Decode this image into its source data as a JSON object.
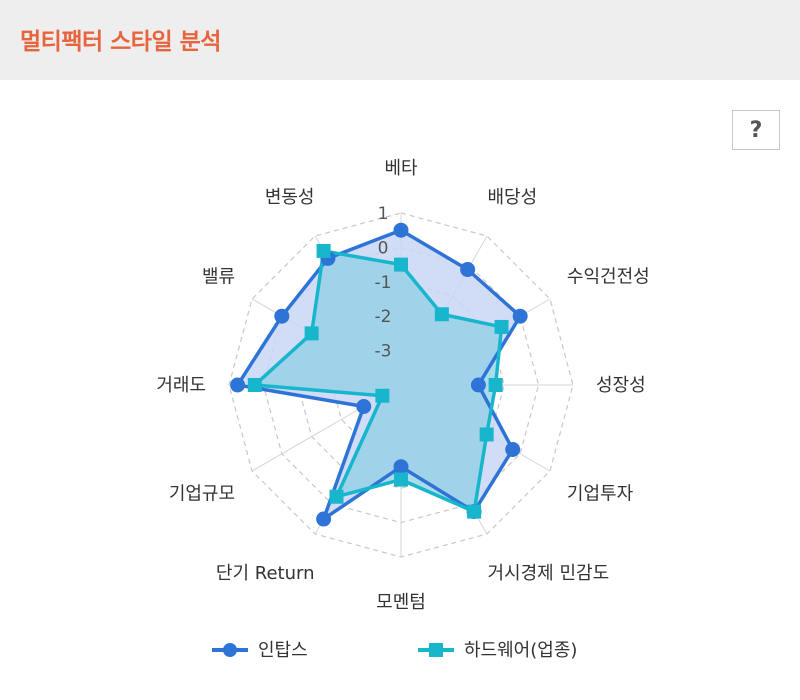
{
  "header": {
    "title": "멀티팩터 스타일 분석"
  },
  "help_button": {
    "label": "?",
    "icon": "question-icon"
  },
  "colors": {
    "header_bg": "#eeeeee",
    "title": "#e8643c",
    "series_company": "#2e74d6",
    "series_industry": "#17b6cc",
    "fill_company": "#c9d6f4",
    "fill_industry": "#8fd0e6"
  },
  "chart_data": {
    "type": "radar",
    "title": "",
    "axes": [
      "베타",
      "배당성",
      "수익건전성",
      "성장성",
      "기업투자",
      "거시경제 민감도",
      "모멘텀",
      "단기 Return",
      "기업규모",
      "거래도",
      "밸류",
      "변동성"
    ],
    "ticks": [
      "1",
      "0",
      "-1",
      "-2",
      "-3"
    ],
    "range": [
      -3,
      1
    ],
    "grid": true,
    "legend_position": "bottom",
    "series": [
      {
        "name": "인탑스",
        "marker": "circle",
        "values": [
          0.6,
          0.1,
          0.2,
          -1.2,
          0.0,
          0.4,
          -1.1,
          0.6,
          -2.0,
          0.8,
          0.2,
          0.4
        ]
      },
      {
        "name": "하드웨어(업종)",
        "marker": "square",
        "values": [
          -0.2,
          -1.1,
          -0.3,
          -0.8,
          -0.7,
          0.4,
          -0.8,
          0.0,
          -2.5,
          0.4,
          -0.6,
          0.6
        ]
      }
    ]
  }
}
